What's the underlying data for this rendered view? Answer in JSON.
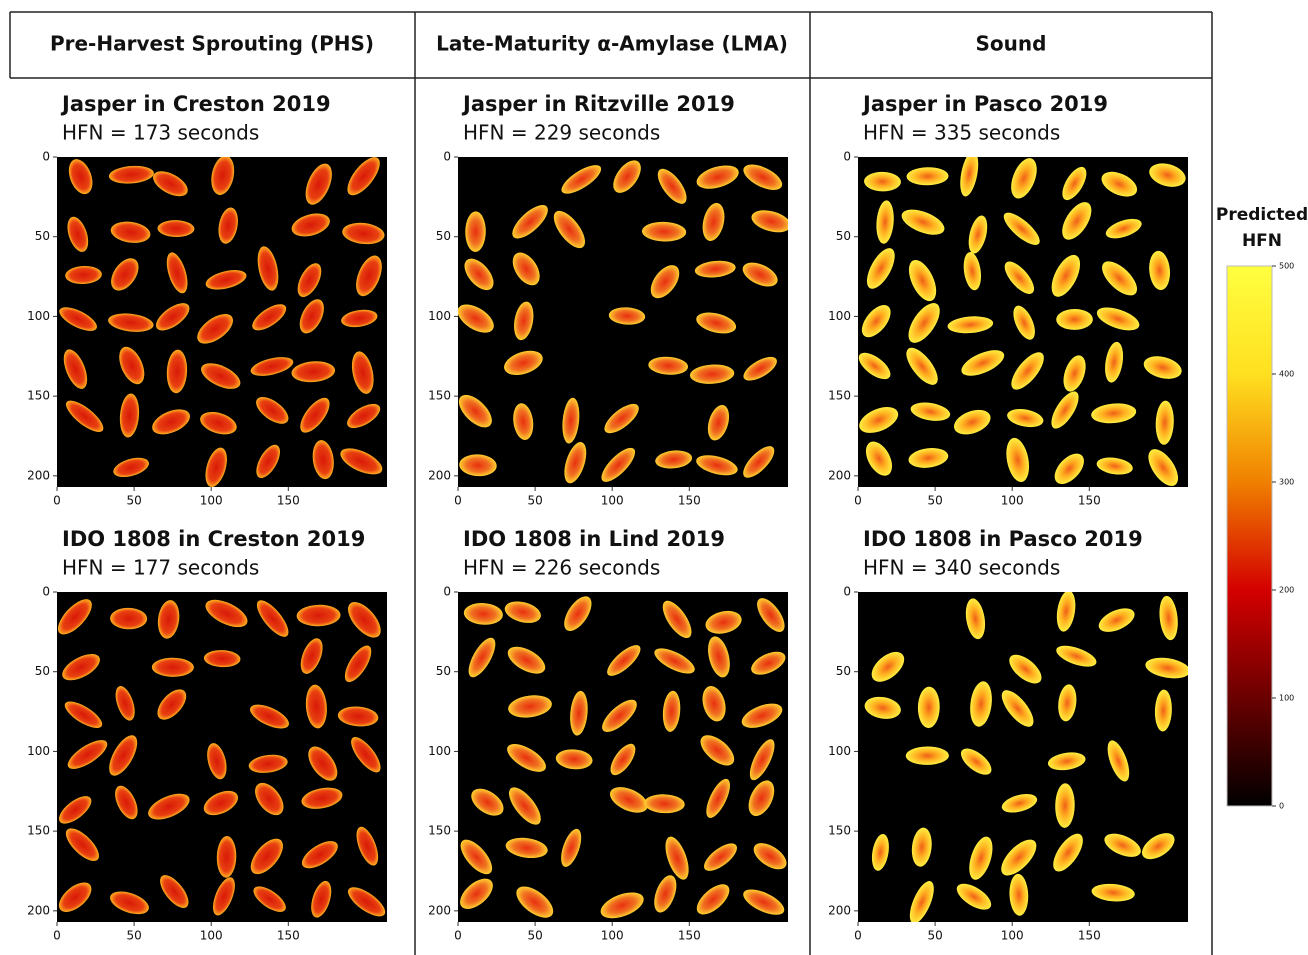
{
  "headers": [
    "Pre-Harvest  Sprouting (PHS)",
    "Late-Maturity α-Amylase (LMA)",
    "Sound"
  ],
  "panels": [
    {
      "title": "Jasper in Creston 2019",
      "subtitle": "HFN = 173 seconds"
    },
    {
      "title": "Jasper in Ritzville 2019",
      "subtitle": "HFN = 229 seconds"
    },
    {
      "title": "Jasper in Pasco 2019",
      "subtitle": "HFN = 335 seconds"
    },
    {
      "title": "IDO 1808 in Creston 2019",
      "subtitle": "HFN = 177 seconds"
    },
    {
      "title": "IDO 1808 in Lind 2019",
      "subtitle": "HFN = 226 seconds"
    },
    {
      "title": "IDO 1808 in Pasco 2019",
      "subtitle": "HFN = 340 seconds"
    }
  ],
  "axes": {
    "xlim": [
      0,
      214
    ],
    "ylim": [
      0,
      207
    ],
    "xticks": [
      0,
      50,
      100,
      150
    ],
    "yticks": [
      0,
      50,
      100,
      150,
      200
    ]
  },
  "colorbar": {
    "title_lines": [
      "Predicted",
      "HFN"
    ],
    "lim": [
      0,
      500
    ],
    "ticks": [
      0,
      100,
      200,
      300,
      400,
      500
    ]
  }
}
